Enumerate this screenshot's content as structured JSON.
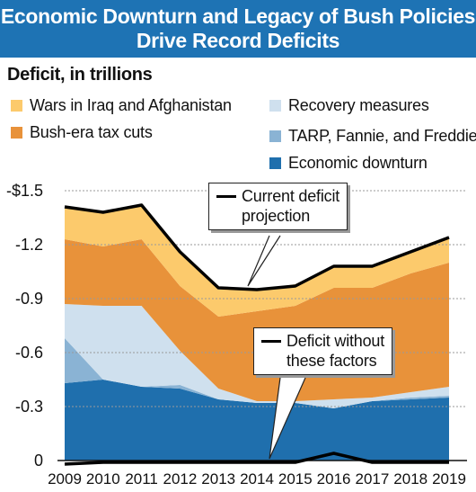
{
  "header": {
    "title_line1": "Economic Downturn and Legacy of Bush Policies",
    "title_line2": "Drive Record Deficits",
    "background_color": "#1e73b4"
  },
  "chart_data": {
    "type": "area",
    "ylabel": "Deficit, in trillions",
    "x": [
      2009,
      2010,
      2011,
      2012,
      2013,
      2014,
      2015,
      2016,
      2017,
      2018,
      2019
    ],
    "y_ticks": [
      "-$1.5",
      "-1.2",
      "-0.9",
      "-0.6",
      "-0.3",
      "0"
    ],
    "ylim": [
      0,
      1.5
    ],
    "grid": true,
    "stack_order_bottom_to_top": [
      "Economic downturn",
      "TARP, Fannie, and Freddie",
      "Recovery measures",
      "Bush-era tax cuts",
      "Wars in Iraq and Afghanistan"
    ],
    "series": [
      {
        "name": "Economic downturn",
        "color": "#1f6fad",
        "values": [
          0.43,
          0.45,
          0.41,
          0.4,
          0.34,
          0.32,
          0.32,
          0.29,
          0.33,
          0.34,
          0.35
        ]
      },
      {
        "name": "TARP, Fannie, and Freddie",
        "color": "#8ab3d4",
        "values": [
          0.25,
          0.0,
          0.0,
          0.02,
          0.0,
          0.0,
          0.0,
          0.0,
          0.0,
          0.01,
          0.01
        ]
      },
      {
        "name": "Recovery measures",
        "color": "#cfe0ee",
        "values": [
          0.19,
          0.41,
          0.45,
          0.19,
          0.06,
          0.01,
          0.01,
          0.05,
          0.02,
          0.03,
          0.05
        ]
      },
      {
        "name": "Bush-era tax cuts",
        "color": "#e8923a",
        "values": [
          0.36,
          0.33,
          0.37,
          0.36,
          0.4,
          0.5,
          0.53,
          0.62,
          0.61,
          0.66,
          0.69
        ]
      },
      {
        "name": "Wars in Iraq and Afghanistan",
        "color": "#fcca6c",
        "values": [
          0.18,
          0.19,
          0.19,
          0.19,
          0.15,
          0.12,
          0.12,
          0.12,
          0.12,
          0.12,
          0.14
        ]
      }
    ],
    "lines": [
      {
        "name": "Current deficit projection",
        "color": "#000000",
        "values": [
          1.41,
          1.38,
          1.42,
          1.16,
          0.96,
          0.95,
          0.97,
          1.08,
          1.08,
          1.16,
          1.24
        ]
      },
      {
        "name": "Deficit without these factors",
        "color": "#000000",
        "values": [
          -0.02,
          -0.01,
          -0.01,
          -0.01,
          -0.01,
          -0.01,
          -0.01,
          0.04,
          -0.01,
          -0.01,
          -0.01
        ]
      }
    ],
    "legend": [
      {
        "label": "Wars in Iraq and Afghanistan",
        "color": "#fcca6c"
      },
      {
        "label": "Bush-era tax cuts",
        "color": "#e8923a"
      },
      {
        "label": "Recovery measures",
        "color": "#cfe0ee"
      },
      {
        "label": "TARP, Fannie, and Freddie",
        "color": "#8ab3d4"
      },
      {
        "label": "Economic downturn",
        "color": "#1f6fad"
      }
    ],
    "annotations": [
      {
        "lines": [
          "Current deficit",
          "projection"
        ]
      },
      {
        "lines": [
          "Deficit without",
          "these factors"
        ]
      }
    ]
  }
}
